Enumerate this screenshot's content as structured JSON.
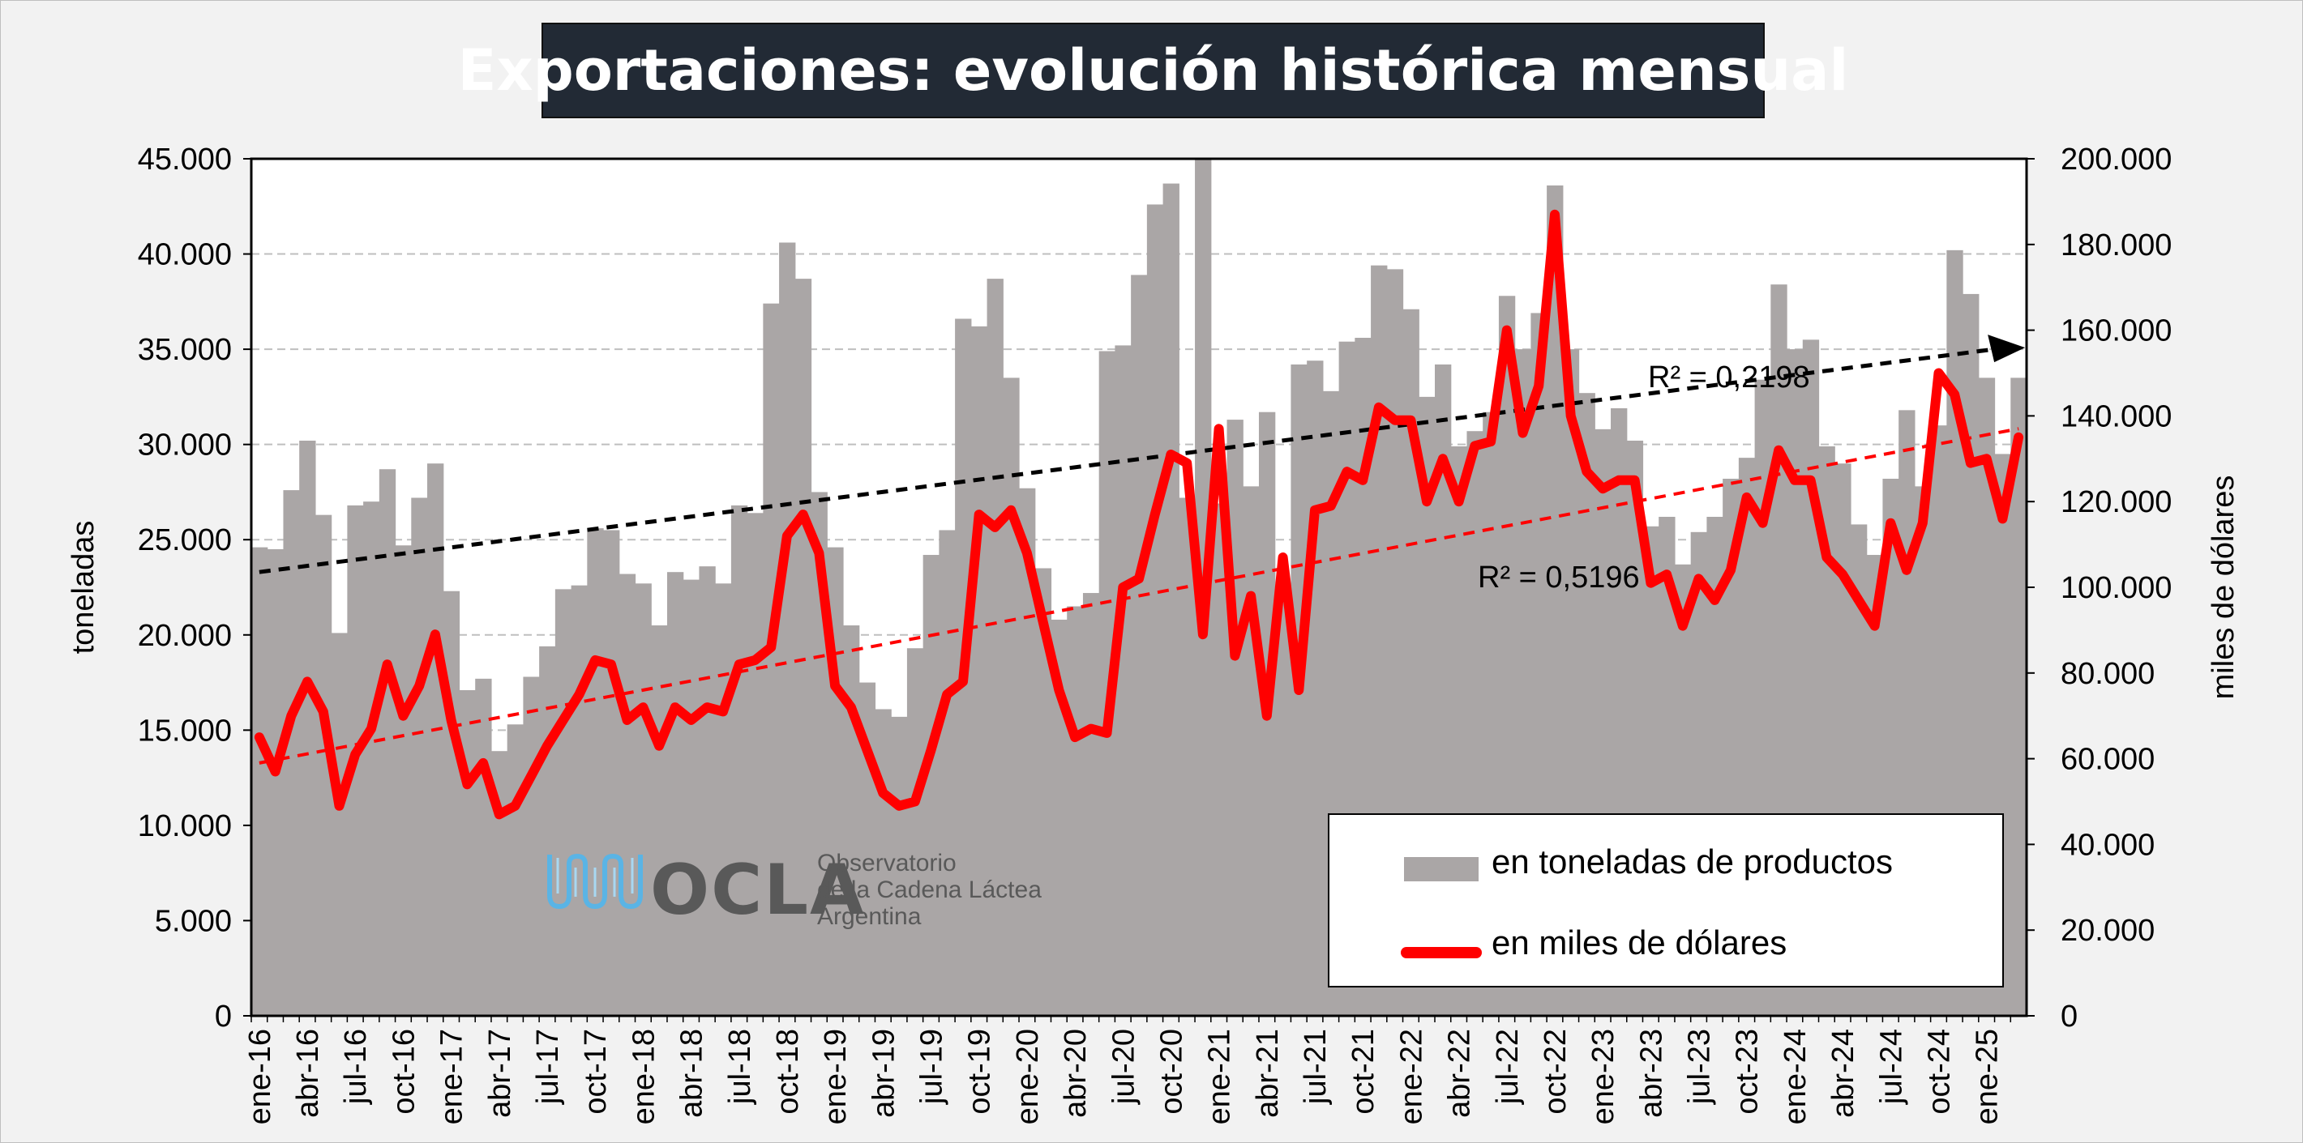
{
  "title": "Exportaciones: evolución histórica mensual",
  "legend": {
    "bar_label": "en toneladas de productos",
    "line_label": "en miles de dólares",
    "bar_color": "#aaa6a6",
    "line_color": "#ff0000"
  },
  "logo": {
    "name": "OCLA",
    "line1": "Observatorio",
    "line2": "de la Cadena Láctea",
    "line3": "Argentina",
    "icon": "milk-wave-icon"
  },
  "chart_data": {
    "type": "bar",
    "title": "Exportaciones: evolución histórica mensual",
    "xlabel": "",
    "ylabel": "toneladas",
    "y2label": "miles de dólares",
    "ylim": [
      0,
      45000
    ],
    "y2lim": [
      0,
      200000
    ],
    "y_ticks": [
      "0",
      "5.000",
      "10.000",
      "15.000",
      "20.000",
      "25.000",
      "30.000",
      "35.000",
      "40.000",
      "45.000"
    ],
    "y2_ticks": [
      "0",
      "20.000",
      "40.000",
      "60.000",
      "80.000",
      "100.000",
      "120.000",
      "140.000",
      "160.000",
      "180.000",
      "200.000"
    ],
    "grid": true,
    "legend_position": "bottom-right",
    "x_tick_labels": [
      "ene-16",
      "abr-16",
      "jul-16",
      "oct-16",
      "ene-17",
      "abr-17",
      "jul-17",
      "oct-17",
      "ene-18",
      "abr-18",
      "jul-18",
      "oct-18",
      "ene-19",
      "abr-19",
      "jul-19",
      "oct-19",
      "ene-20",
      "abr-20",
      "jul-20",
      "oct-20",
      "ene-21",
      "abr-21",
      "jul-21",
      "oct-21",
      "ene-22",
      "abr-22",
      "jul-22",
      "oct-22",
      "ene-23",
      "abr-23",
      "jul-23",
      "oct-23",
      "ene-24",
      "abr-24",
      "jul-24",
      "oct-24",
      "ene-25"
    ],
    "series": [
      {
        "name": "en toneladas de productos",
        "kind": "bar",
        "axis": "left",
        "color": "#aaa6a6",
        "values": [
          24600,
          24500,
          27600,
          30200,
          26300,
          20100,
          26800,
          27000,
          28700,
          24700,
          27200,
          29000,
          22300,
          17100,
          17700,
          13900,
          15300,
          17800,
          19400,
          22400,
          22600,
          25600,
          25500,
          23200,
          22700,
          20500,
          23300,
          22900,
          23600,
          22700,
          26800,
          26400,
          37400,
          40600,
          38700,
          27500,
          24600,
          20500,
          17500,
          16100,
          15700,
          19300,
          24200,
          25500,
          36600,
          36200,
          38700,
          33500,
          27700,
          23500,
          20800,
          21500,
          22200,
          34900,
          35200,
          38900,
          42600,
          43700,
          27200,
          45000,
          26900,
          31300,
          27800,
          31700,
          21900,
          34200,
          34400,
          32800,
          35400,
          35600,
          39400,
          39200,
          37100,
          32500,
          34200,
          29900,
          30700,
          31700,
          37800,
          35000,
          36900,
          43600,
          35000,
          32700,
          30800,
          31900,
          30200,
          25700,
          26200,
          23700,
          25400,
          26200,
          28200,
          29300,
          33400,
          38400,
          35000,
          35500,
          29900,
          29000,
          25800,
          24200,
          28200,
          31800,
          27800,
          31000,
          40200,
          37900,
          33500,
          29500,
          33500
        ]
      },
      {
        "name": "en miles de dólares",
        "kind": "line",
        "axis": "right",
        "color": "#ff0000",
        "values": [
          65000,
          57000,
          70000,
          78000,
          71000,
          49000,
          61000,
          67000,
          82000,
          70000,
          77000,
          89000,
          69000,
          54000,
          59000,
          47000,
          49000,
          56000,
          63000,
          69000,
          75000,
          83000,
          82000,
          69000,
          72000,
          63000,
          72000,
          69000,
          72000,
          71000,
          82000,
          83000,
          86000,
          112000,
          117000,
          108000,
          77000,
          72000,
          62000,
          52000,
          49000,
          50000,
          62000,
          75000,
          78000,
          117000,
          114000,
          118000,
          108000,
          92000,
          76000,
          65000,
          67000,
          66000,
          100000,
          102000,
          117000,
          131000,
          129000,
          89000,
          137000,
          84000,
          98000,
          70000,
          107000,
          76000,
          118000,
          119000,
          127000,
          125000,
          142000,
          139000,
          139000,
          120000,
          130000,
          120000,
          133000,
          134000,
          160000,
          136000,
          147000,
          187000,
          140000,
          127000,
          123000,
          125000,
          125000,
          101000,
          103000,
          91000,
          102000,
          97000,
          104000,
          121000,
          115000,
          132000,
          125000,
          125000,
          107000,
          103000,
          97000,
          91000,
          115000,
          104000,
          115000,
          150000,
          145000,
          129000,
          130000,
          116000,
          135000
        ]
      }
    ],
    "trendlines": [
      {
        "series": "en toneladas de productos",
        "axis": "left",
        "color": "#000000",
        "start": 23300,
        "end": 35000,
        "label": "R² = 0,2198"
      },
      {
        "series": "en miles de dólares",
        "axis": "right",
        "color": "#ff0000",
        "start": 59000,
        "end": 137000,
        "label": "R² = 0,5196"
      }
    ]
  }
}
